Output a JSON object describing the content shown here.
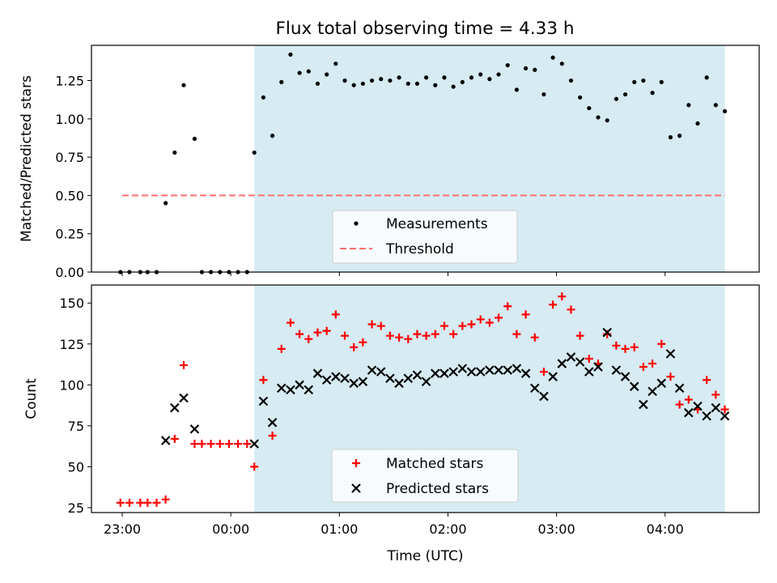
{
  "title": "Flux total observing time = 4.33 h",
  "colors": {
    "shade": "#add8e6",
    "measurement": "#000000",
    "threshold": "#ff6f6f",
    "matched": "#ff0000",
    "predicted": "#000000"
  },
  "chart_data": [
    {
      "type": "scatter",
      "ylabel": "Matched/Predicted stars",
      "ylim": [
        0,
        1.48
      ],
      "yticks": [
        "0.00",
        "0.25",
        "0.50",
        "0.75",
        "1.00",
        "1.25"
      ],
      "shaded_span": {
        "from": "00:13",
        "to": "04:33"
      },
      "legend": {
        "placement": "lower center",
        "entries": [
          "Measurements",
          "Threshold"
        ]
      },
      "threshold": {
        "name": "Threshold",
        "value": 0.5,
        "from": "23:00",
        "to": "04:33"
      },
      "series": [
        {
          "name": "Measurements",
          "points": [
            [
              "22:59",
              0
            ],
            [
              "23:04",
              0
            ],
            [
              "23:10",
              0
            ],
            [
              "23:14",
              0
            ],
            [
              "23:19",
              0
            ],
            [
              "23:24",
              0.45
            ],
            [
              "23:29",
              0.78
            ],
            [
              "23:34",
              1.22
            ],
            [
              "23:40",
              0.87
            ],
            [
              "23:44",
              0
            ],
            [
              "23:49",
              0
            ],
            [
              "23:54",
              0
            ],
            [
              "23:59",
              0
            ],
            [
              "00:04",
              0
            ],
            [
              "00:09",
              0
            ],
            [
              "00:13",
              0.78
            ],
            [
              "00:18",
              1.14
            ],
            [
              "00:23",
              0.89
            ],
            [
              "00:28",
              1.24
            ],
            [
              "00:33",
              1.42
            ],
            [
              "00:38",
              1.3
            ],
            [
              "00:43",
              1.31
            ],
            [
              "00:48",
              1.23
            ],
            [
              "00:53",
              1.29
            ],
            [
              "00:58",
              1.36
            ],
            [
              "01:03",
              1.25
            ],
            [
              "01:08",
              1.22
            ],
            [
              "01:13",
              1.23
            ],
            [
              "01:18",
              1.25
            ],
            [
              "01:23",
              1.26
            ],
            [
              "01:28",
              1.25
            ],
            [
              "01:33",
              1.27
            ],
            [
              "01:38",
              1.23
            ],
            [
              "01:43",
              1.23
            ],
            [
              "01:48",
              1.27
            ],
            [
              "01:53",
              1.22
            ],
            [
              "01:58",
              1.27
            ],
            [
              "02:03",
              1.21
            ],
            [
              "02:08",
              1.24
            ],
            [
              "02:13",
              1.27
            ],
            [
              "02:18",
              1.29
            ],
            [
              "02:23",
              1.26
            ],
            [
              "02:28",
              1.29
            ],
            [
              "02:33",
              1.35
            ],
            [
              "02:38",
              1.19
            ],
            [
              "02:43",
              1.33
            ],
            [
              "02:48",
              1.32
            ],
            [
              "02:53",
              1.16
            ],
            [
              "02:58",
              1.4
            ],
            [
              "03:03",
              1.36
            ],
            [
              "03:08",
              1.25
            ],
            [
              "03:13",
              1.14
            ],
            [
              "03:18",
              1.07
            ],
            [
              "03:23",
              1.01
            ],
            [
              "03:28",
              0.99
            ],
            [
              "03:33",
              1.13
            ],
            [
              "03:38",
              1.16
            ],
            [
              "03:43",
              1.24
            ],
            [
              "03:48",
              1.25
            ],
            [
              "03:53",
              1.17
            ],
            [
              "03:58",
              1.24
            ],
            [
              "04:03",
              0.88
            ],
            [
              "04:08",
              0.89
            ],
            [
              "04:13",
              1.09
            ],
            [
              "04:18",
              0.97
            ],
            [
              "04:23",
              1.27
            ],
            [
              "04:28",
              1.09
            ],
            [
              "04:33",
              1.05
            ]
          ]
        }
      ]
    },
    {
      "type": "scatter",
      "xlabel": "Time (UTC)",
      "ylabel": "Count",
      "xlim": [
        "22:43",
        "04:52"
      ],
      "ylim": [
        22,
        161
      ],
      "xticks": [
        "23:00",
        "00:00",
        "01:00",
        "02:00",
        "03:00",
        "04:00"
      ],
      "yticks": [
        "25",
        "50",
        "75",
        "100",
        "125",
        "150"
      ],
      "shaded_span": {
        "from": "00:13",
        "to": "04:33"
      },
      "legend": {
        "placement": "lower center",
        "entries": [
          "Matched stars",
          "Predicted stars"
        ]
      },
      "series": [
        {
          "name": "Matched stars",
          "points": [
            [
              "22:59",
              28
            ],
            [
              "23:04",
              28
            ],
            [
              "23:10",
              28
            ],
            [
              "23:14",
              28
            ],
            [
              "23:19",
              28
            ],
            [
              "23:24",
              30
            ],
            [
              "23:29",
              67
            ],
            [
              "23:34",
              112
            ],
            [
              "23:40",
              64
            ],
            [
              "23:44",
              64
            ],
            [
              "23:49",
              64
            ],
            [
              "23:54",
              64
            ],
            [
              "23:59",
              64
            ],
            [
              "00:04",
              64
            ],
            [
              "00:09",
              64
            ],
            [
              "00:13",
              50
            ],
            [
              "00:18",
              103
            ],
            [
              "00:23",
              69
            ],
            [
              "00:28",
              122
            ],
            [
              "00:33",
              138
            ],
            [
              "00:38",
              131
            ],
            [
              "00:43",
              128
            ],
            [
              "00:48",
              132
            ],
            [
              "00:53",
              133
            ],
            [
              "00:58",
              143
            ],
            [
              "01:03",
              130
            ],
            [
              "01:08",
              123
            ],
            [
              "01:13",
              126
            ],
            [
              "01:18",
              137
            ],
            [
              "01:23",
              136
            ],
            [
              "01:28",
              130
            ],
            [
              "01:33",
              129
            ],
            [
              "01:38",
              128
            ],
            [
              "01:43",
              131
            ],
            [
              "01:48",
              130
            ],
            [
              "01:53",
              131
            ],
            [
              "01:58",
              136
            ],
            [
              "02:03",
              131
            ],
            [
              "02:08",
              136
            ],
            [
              "02:13",
              137
            ],
            [
              "02:18",
              140
            ],
            [
              "02:23",
              138
            ],
            [
              "02:28",
              141
            ],
            [
              "02:33",
              148
            ],
            [
              "02:38",
              131
            ],
            [
              "02:43",
              143
            ],
            [
              "02:48",
              129
            ],
            [
              "02:53",
              108
            ],
            [
              "02:58",
              149
            ],
            [
              "03:03",
              154
            ],
            [
              "03:08",
              146
            ],
            [
              "03:13",
              130
            ],
            [
              "03:18",
              116
            ],
            [
              "03:23",
              113
            ],
            [
              "03:28",
              131
            ],
            [
              "03:33",
              124
            ],
            [
              "03:38",
              122
            ],
            [
              "03:43",
              123
            ],
            [
              "03:48",
              111
            ],
            [
              "03:53",
              113
            ],
            [
              "03:58",
              125
            ],
            [
              "04:03",
              105
            ],
            [
              "04:08",
              88
            ],
            [
              "04:13",
              91
            ],
            [
              "04:18",
              85
            ],
            [
              "04:23",
              103
            ],
            [
              "04:28",
              94
            ],
            [
              "04:33",
              85
            ]
          ]
        },
        {
          "name": "Predicted stars",
          "points": [
            [
              "23:24",
              66
            ],
            [
              "23:29",
              86
            ],
            [
              "23:34",
              92
            ],
            [
              "23:40",
              73
            ],
            [
              "00:13",
              64
            ],
            [
              "00:18",
              90
            ],
            [
              "00:23",
              77
            ],
            [
              "00:28",
              98
            ],
            [
              "00:33",
              97
            ],
            [
              "00:38",
              100
            ],
            [
              "00:43",
              97
            ],
            [
              "00:48",
              107
            ],
            [
              "00:53",
              103
            ],
            [
              "00:58",
              105
            ],
            [
              "01:03",
              104
            ],
            [
              "01:08",
              101
            ],
            [
              "01:13",
              102
            ],
            [
              "01:18",
              109
            ],
            [
              "01:23",
              108
            ],
            [
              "01:28",
              104
            ],
            [
              "01:33",
              101
            ],
            [
              "01:38",
              104
            ],
            [
              "01:43",
              106
            ],
            [
              "01:48",
              102
            ],
            [
              "01:53",
              107
            ],
            [
              "01:58",
              107
            ],
            [
              "02:03",
              108
            ],
            [
              "02:08",
              110
            ],
            [
              "02:13",
              108
            ],
            [
              "02:18",
              108
            ],
            [
              "02:23",
              109
            ],
            [
              "02:28",
              109
            ],
            [
              "02:33",
              109
            ],
            [
              "02:38",
              110
            ],
            [
              "02:43",
              107
            ],
            [
              "02:48",
              98
            ],
            [
              "02:53",
              93
            ],
            [
              "02:58",
              105
            ],
            [
              "03:03",
              113
            ],
            [
              "03:08",
              117
            ],
            [
              "03:13",
              114
            ],
            [
              "03:18",
              108
            ],
            [
              "03:23",
              111
            ],
            [
              "03:28",
              132
            ],
            [
              "03:33",
              109
            ],
            [
              "03:38",
              105
            ],
            [
              "03:43",
              99
            ],
            [
              "03:48",
              88
            ],
            [
              "03:53",
              96
            ],
            [
              "03:58",
              101
            ],
            [
              "04:03",
              119
            ],
            [
              "04:08",
              98
            ],
            [
              "04:13",
              83
            ],
            [
              "04:18",
              87
            ],
            [
              "04:23",
              81
            ],
            [
              "04:28",
              86
            ],
            [
              "04:33",
              81
            ]
          ]
        }
      ]
    }
  ]
}
